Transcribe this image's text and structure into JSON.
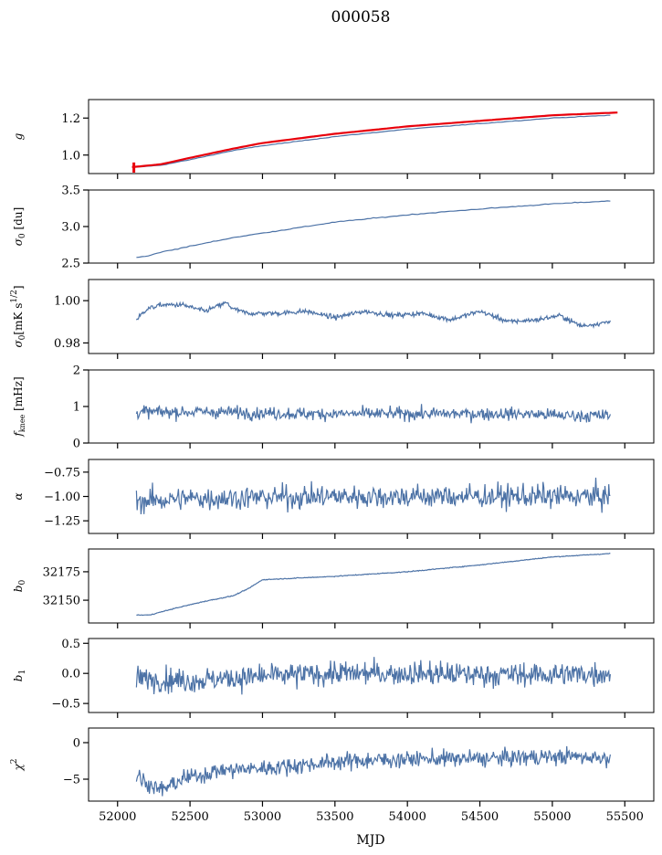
{
  "figure": {
    "title": "000058"
  },
  "chart_data": {
    "type": "line",
    "title": "000058",
    "xlabel": "MJD",
    "xlim": [
      51800,
      55700
    ],
    "x_ticks": [
      52000,
      52500,
      53000,
      53500,
      54000,
      54500,
      55000,
      55500
    ],
    "x_tick_labels": [
      "52000",
      "52500",
      "53000",
      "53500",
      "54000",
      "54500",
      "55000",
      "55500"
    ],
    "x_range_data": [
      52130,
      55400
    ],
    "series_color": "#4c72a6",
    "fit_color": "#e8000b",
    "grid": false,
    "panels": [
      {
        "key": "g",
        "ylabel": "g",
        "ylim": [
          0.9,
          1.3
        ],
        "y_ticks": [
          1.0,
          1.2
        ],
        "y_tick_labels": [
          "1.0",
          "1.2"
        ],
        "series": [
          {
            "x": [
              52130,
              52300,
              52500,
              52800,
              53000,
              53500,
              54000,
              54500,
              55000,
              55400
            ],
            "values": [
              0.935,
              0.945,
              0.975,
              1.025,
              1.05,
              1.1,
              1.14,
              1.17,
              1.2,
              1.215
            ]
          }
        ],
        "fit": {
          "x": [
            52100,
            52300,
            52500,
            52800,
            53000,
            53500,
            54000,
            54500,
            55000,
            55450
          ],
          "values": [
            0.935,
            0.95,
            0.985,
            1.035,
            1.065,
            1.115,
            1.155,
            1.185,
            1.215,
            1.23
          ]
        }
      },
      {
        "key": "sigma0_du",
        "ylabel": "σ0 [du]",
        "ylim": [
          2.5,
          3.5
        ],
        "y_ticks": [
          2.5,
          3.0,
          3.5
        ],
        "y_tick_labels": [
          "2.5",
          "3.0",
          "3.5"
        ],
        "series": [
          {
            "x": [
              52130,
              52200,
              52300,
              52500,
              52800,
              53000,
              53500,
              54000,
              54500,
              55000,
              55400
            ],
            "values": [
              2.58,
              2.59,
              2.65,
              2.73,
              2.85,
              2.91,
              3.06,
              3.16,
              3.24,
              3.31,
              3.35
            ]
          }
        ]
      },
      {
        "key": "sigma0_mk",
        "ylabel": "σ0 [mK s^1/2]",
        "ylim": [
          0.975,
          1.01
        ],
        "y_ticks": [
          0.98,
          1.0
        ],
        "y_tick_labels": [
          "0.98",
          "1.00"
        ],
        "series": [
          {
            "x": [
              52130,
              52200,
              52300,
              52450,
              52600,
              52750,
              52800,
              52900,
              53100,
              53300,
              53500,
              53700,
              53900,
              54100,
              54300,
              54500,
              54700,
              54900,
              55050,
              55200,
              55400
            ],
            "values": [
              0.991,
              0.996,
              0.998,
              0.998,
              0.995,
              0.999,
              0.996,
              0.994,
              0.994,
              0.995,
              0.992,
              0.995,
              0.993,
              0.994,
              0.991,
              0.995,
              0.99,
              0.991,
              0.993,
              0.988,
              0.99
            ]
          }
        ]
      },
      {
        "key": "fknee",
        "ylabel": "fknee [mHz]",
        "ylim": [
          0,
          2
        ],
        "y_ticks": [
          0,
          1,
          2
        ],
        "y_tick_labels": [
          "0",
          "1",
          "2"
        ],
        "series": [
          {
            "x": [
              52130,
              52400,
              52700,
              53000,
              53300,
              53600,
              53900,
              54200,
              54500,
              54800,
              55100,
              55400
            ],
            "values": [
              0.85,
              0.85,
              0.85,
              0.82,
              0.8,
              0.8,
              0.8,
              0.8,
              0.8,
              0.8,
              0.75,
              0.75
            ]
          }
        ]
      },
      {
        "key": "alpha",
        "ylabel": "α",
        "ylim": [
          -1.38,
          -0.62
        ],
        "y_ticks": [
          -1.25,
          -1.0,
          -0.75
        ],
        "y_tick_labels": [
          "−1.25",
          "−1.00",
          "−0.75"
        ],
        "series": [
          {
            "x": [
              52130,
              52500,
              53000,
              53500,
              54000,
              54500,
              55000,
              55400
            ],
            "values": [
              -1.05,
              -1.02,
              -1.01,
              -1.0,
              -1.0,
              -1.0,
              -1.0,
              -1.0
            ]
          }
        ]
      },
      {
        "key": "b0",
        "ylabel": "b0",
        "ylim": [
          32130,
          32195
        ],
        "y_ticks": [
          32150,
          32175
        ],
        "y_tick_labels": [
          "32150",
          "32175"
        ],
        "series": [
          {
            "x": [
              52130,
              52220,
              52400,
              52600,
              52800,
              52900,
              52950,
              53000,
              53500,
              54000,
              54500,
              55000,
              55400
            ],
            "values": [
              32137,
              32137,
              32143,
              32149,
              32154,
              32160,
              32164,
              32168,
              32171,
              32175,
              32181,
              32188,
              32191
            ]
          }
        ]
      },
      {
        "key": "b1",
        "ylabel": "b1",
        "ylim": [
          -0.65,
          0.58
        ],
        "y_ticks": [
          -0.5,
          0.0,
          0.5
        ],
        "y_tick_labels": [
          "−0.5",
          "0.0",
          "0.5"
        ],
        "series": [
          {
            "x": [
              52130,
              52500,
              53000,
              53500,
              54000,
              54500,
              55000,
              55400
            ],
            "values": [
              -0.08,
              -0.12,
              -0.05,
              0.0,
              0.0,
              -0.02,
              -0.02,
              0.0
            ]
          }
        ]
      },
      {
        "key": "chi2",
        "ylabel": "χ2",
        "ylim": [
          -8,
          2
        ],
        "y_ticks": [
          -5,
          0
        ],
        "y_tick_labels": [
          "−5",
          "0"
        ],
        "series": [
          {
            "x": [
              52130,
              52200,
              52300,
              52450,
              52700,
              53000,
              53300,
              53600,
              53900,
              54200,
              54500,
              54800,
              55100,
              55400
            ],
            "values": [
              -4.5,
              -5.5,
              -6.5,
              -5.0,
              -3.8,
              -3.5,
              -3.0,
              -2.5,
              -2.3,
              -2.2,
              -2.2,
              -2.0,
              -1.9,
              -2.0
            ]
          }
        ]
      }
    ]
  }
}
